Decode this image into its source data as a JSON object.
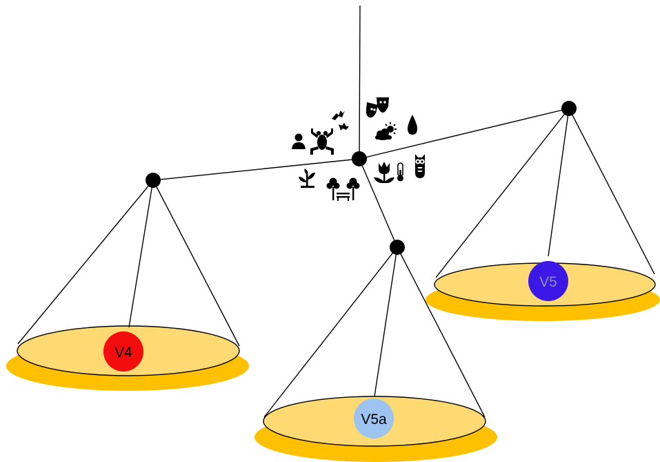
{
  "diagram": {
    "type": "three-pan balance scale",
    "colors": {
      "line": "#000000",
      "node": "#000000",
      "pan_top": "#FFDA73",
      "pan_rim": "#FFC000",
      "icon": "#000000"
    },
    "hub_icons": [
      "person-icon",
      "frog-icon",
      "bats-icon",
      "theater-masks-icon",
      "sun-cloud-icon",
      "water-drop-icon",
      "plant-icon",
      "trees-bench-icon",
      "tulip-icon",
      "thermometer-icon",
      "owl-icon"
    ],
    "pans": [
      {
        "id": "v4",
        "label": "V4",
        "badge_color": "#F40D0D",
        "text_color": "#000000"
      },
      {
        "id": "v5a",
        "label": "V5a",
        "badge_color": "#9DC3F0",
        "text_color": "#000000"
      },
      {
        "id": "v5",
        "label": "V5",
        "badge_color": "#3B18E6",
        "text_color": "#8F8FB8"
      }
    ]
  }
}
